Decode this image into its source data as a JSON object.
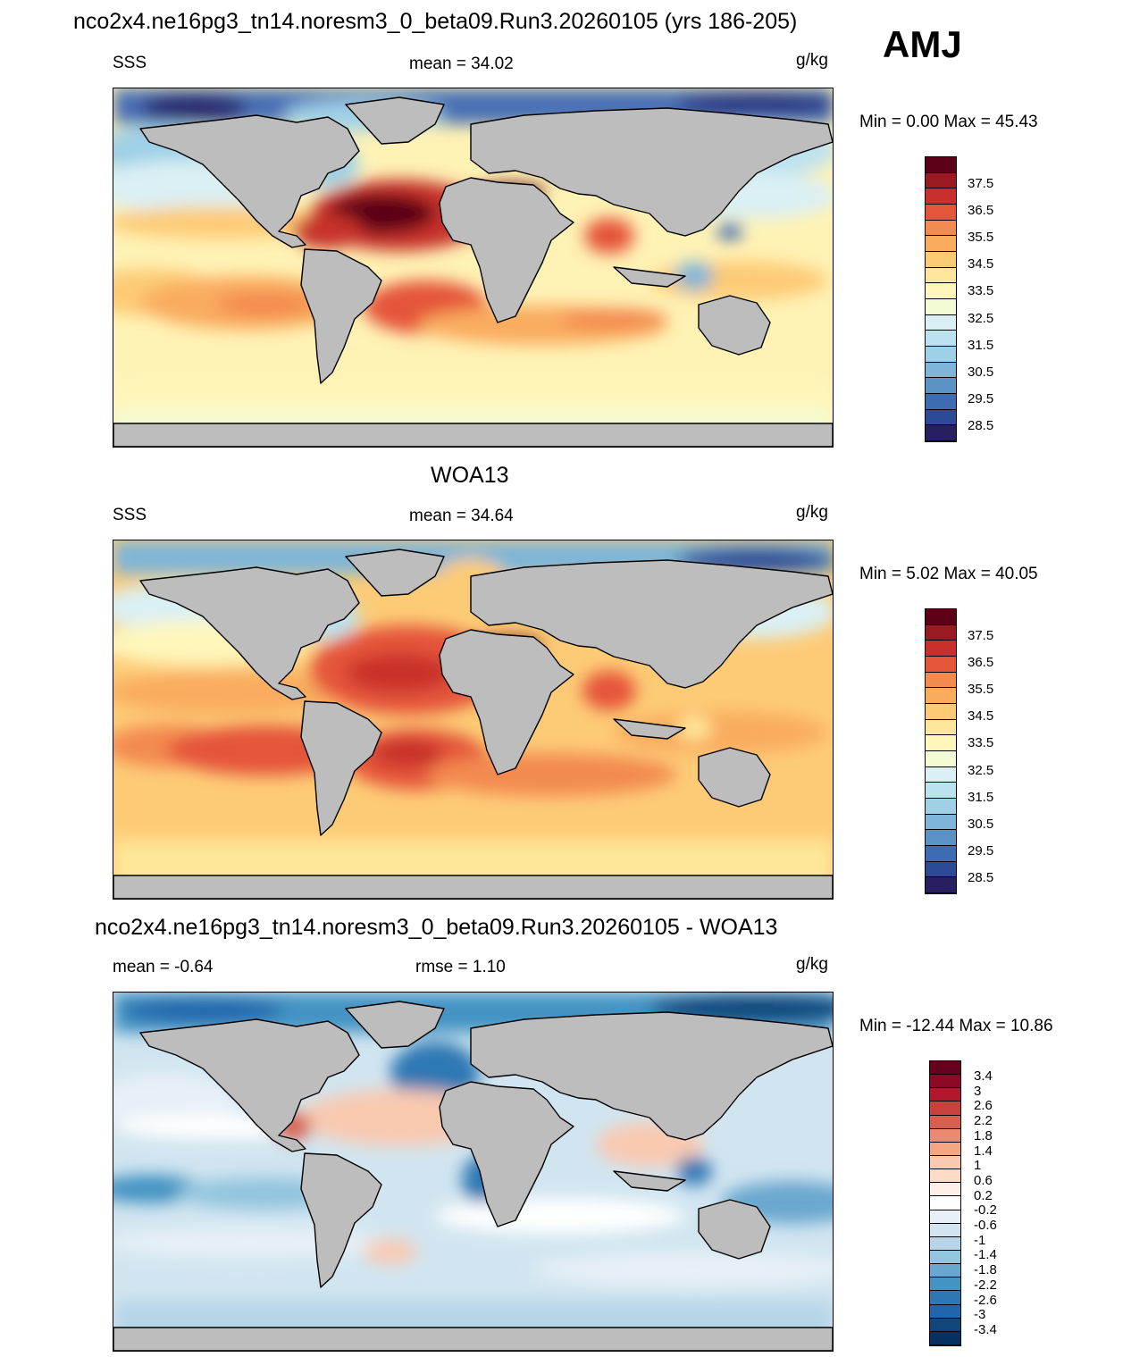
{
  "header": {
    "title": "nco2x4.ne16pg3_tn14.noresm3_0_beta09.Run3.20260105 (yrs 186-205)",
    "season": "AMJ"
  },
  "panels": [
    {
      "title": "",
      "left": "SSS",
      "center": "mean =  34.02",
      "units": "g/kg",
      "minmax": "Min =   0.00 Max =  45.43"
    },
    {
      "title": "WOA13",
      "left": "SSS",
      "center": "mean =  34.64",
      "units": "g/kg",
      "minmax": "Min =   5.02 Max =  40.05"
    },
    {
      "title": "nco2x4.ne16pg3_tn14.noresm3_0_beta09.Run3.20260105 - WOA13",
      "left": "mean =  -0.64",
      "center": "rmse =   1.10",
      "units": "g/kg",
      "minmax": "Min = -12.44 Max =  10.86"
    }
  ],
  "colorbars": {
    "sss": {
      "ticks": [
        "37.5",
        "36.5",
        "35.5",
        "34.5",
        "33.5",
        "32.5",
        "31.5",
        "30.5",
        "29.5",
        "28.5"
      ],
      "colors": [
        "#5c0018",
        "#9a1a22",
        "#c8302c",
        "#e5553a",
        "#f38a4f",
        "#f9ac5e",
        "#fdcb76",
        "#fee79a",
        "#fff6bb",
        "#f3fbd4",
        "#daf0f4",
        "#bde2ef",
        "#9fd0e6",
        "#7eb5d8",
        "#5b92c6",
        "#3e6cb0",
        "#2e4a96",
        "#261f60"
      ]
    },
    "diff": {
      "ticks": [
        "3.4",
        "3",
        "2.6",
        "2.2",
        "1.8",
        "1.4",
        "1",
        "0.6",
        "0.2",
        "-0.2",
        "-0.6",
        "-1",
        "-1.4",
        "-1.8",
        "-2.2",
        "-2.6",
        "-3",
        "-3.4"
      ],
      "colors": [
        "#67001f",
        "#8c0a26",
        "#b2182b",
        "#c9403c",
        "#d6604d",
        "#e98a71",
        "#f4a582",
        "#f9c9b0",
        "#fddbc7",
        "#fdf0e8",
        "#ffffff",
        "#e6f0f6",
        "#d1e5f0",
        "#b6d5e8",
        "#92c5de",
        "#6aa7cf",
        "#4393c3",
        "#2d78b4",
        "#2166ac",
        "#11467d",
        "#053061"
      ]
    }
  }
}
